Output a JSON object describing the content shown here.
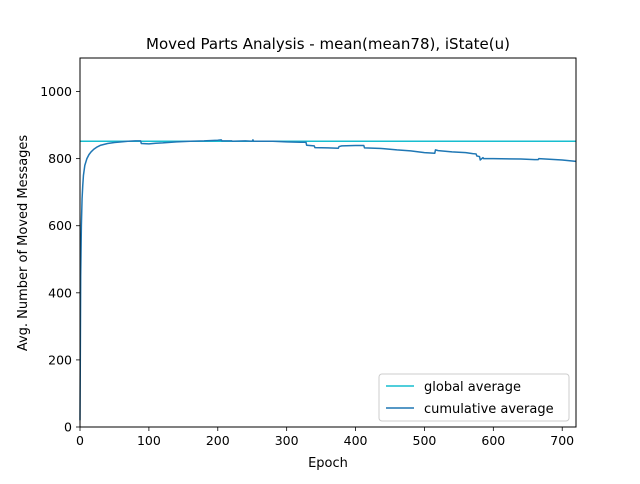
{
  "chart_data": {
    "type": "line",
    "title": "Moved Parts Analysis - mean(mean78), iState(u)",
    "xlabel": "Epoch",
    "ylabel": "Avg. Number of Moved Messages",
    "xlim": [
      0,
      720
    ],
    "ylim": [
      0,
      1100
    ],
    "xticks": [
      0,
      100,
      200,
      300,
      400,
      500,
      600,
      700
    ],
    "yticks": [
      0,
      200,
      400,
      600,
      800,
      1000
    ],
    "grid": false,
    "legend_position": "lower-right",
    "series": [
      {
        "name": "global average",
        "color": "#17becf",
        "x": [
          0,
          720
        ],
        "y": [
          852,
          852
        ]
      },
      {
        "name": "cumulative average",
        "color": "#1f77b4",
        "x": [
          0,
          1,
          2,
          3,
          4,
          5,
          7,
          10,
          13,
          16,
          20,
          25,
          30,
          40,
          50,
          60,
          70,
          80,
          88,
          89,
          100,
          110,
          120,
          140,
          160,
          180,
          200,
          205,
          206,
          220,
          221,
          240,
          250,
          251,
          252,
          280,
          300,
          320,
          328,
          329,
          340,
          341,
          360,
          375,
          376,
          380,
          400,
          412,
          413,
          440,
          460,
          480,
          500,
          515,
          516,
          520,
          540,
          560,
          570,
          575,
          576,
          580,
          581,
          585,
          586,
          600,
          640,
          660,
          665,
          666,
          700,
          720
        ],
        "y": [
          20,
          450,
          600,
          680,
          720,
          750,
          780,
          800,
          812,
          820,
          828,
          835,
          840,
          845,
          848,
          850,
          852,
          853,
          853,
          845,
          844,
          846,
          847,
          850,
          852,
          853,
          855,
          856,
          853,
          853,
          852,
          853,
          852,
          856,
          852,
          852,
          850,
          849,
          849,
          840,
          838,
          833,
          832,
          831,
          836,
          838,
          839,
          839,
          832,
          830,
          826,
          823,
          818,
          816,
          826,
          824,
          820,
          818,
          815,
          814,
          808,
          806,
          796,
          803,
          800,
          800,
          799,
          797,
          797,
          800,
          796,
          792
        ]
      }
    ]
  }
}
